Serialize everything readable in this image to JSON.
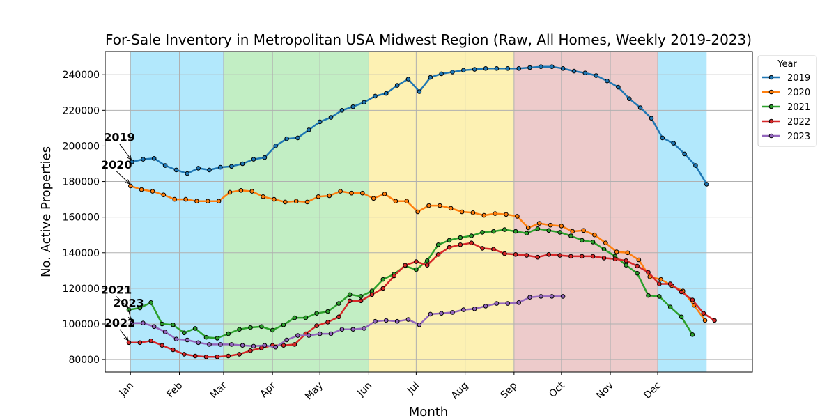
{
  "chart_data": {
    "type": "line",
    "title": "For-Sale Inventory in Metropolitan USA Midwest Region (Raw, All Homes, Weekly 2019-2023)",
    "xlabel": "Month",
    "ylabel": "No. Active Properties",
    "x_unit": "day of year",
    "xlim": [
      -15,
      395
    ],
    "ylim": [
      73000,
      253000
    ],
    "y_ticks": [
      80000,
      100000,
      120000,
      140000,
      160000,
      180000,
      200000,
      220000,
      240000
    ],
    "month_ticks": [
      {
        "label": "Jan",
        "day": 1
      },
      {
        "label": "Feb",
        "day": 32
      },
      {
        "label": "Mar",
        "day": 60
      },
      {
        "label": "Apr",
        "day": 91
      },
      {
        "label": "May",
        "day": 121
      },
      {
        "label": "Jun",
        "day": 152
      },
      {
        "label": "Jul",
        "day": 182
      },
      {
        "label": "Aug",
        "day": 213
      },
      {
        "label": "Sep",
        "day": 244
      },
      {
        "label": "Oct",
        "day": 274
      },
      {
        "label": "Nov",
        "day": 305
      },
      {
        "label": "Dec",
        "day": 335
      }
    ],
    "grid": true,
    "legend": {
      "title": "Year",
      "position": "outside-right-top"
    },
    "season_bands": [
      {
        "name": "winter",
        "from": 1,
        "to": 60,
        "color": "#b2e8fc"
      },
      {
        "name": "spring",
        "from": 60,
        "to": 152,
        "color": "#c2eec4"
      },
      {
        "name": "summer",
        "from": 152,
        "to": 244,
        "color": "#fdf1b3"
      },
      {
        "name": "autumn",
        "from": 244,
        "to": 335,
        "color": "#edcbcb"
      },
      {
        "name": "winter",
        "from": 335,
        "to": 366,
        "color": "#b2e8fc"
      }
    ],
    "series": [
      {
        "name": "2019",
        "color": "#1f77b4",
        "x_start": 2,
        "values": [
          191000,
          192500,
          193000,
          189000,
          186500,
          184500,
          187500,
          186500,
          188000,
          188500,
          190000,
          192500,
          193500,
          200000,
          204000,
          204500,
          209000,
          213500,
          216000,
          220000,
          222000,
          224500,
          228000,
          229500,
          234000,
          237500,
          230500,
          238500,
          240500,
          241500,
          242500,
          243000,
          243500,
          243500,
          243500,
          243500,
          244000,
          244500,
          244500,
          243500,
          242000,
          241000,
          239500,
          236500,
          233000,
          226500,
          221500,
          215500,
          204500,
          201500,
          195500,
          189000,
          178500
        ]
      },
      {
        "name": "2020",
        "color": "#ff7f0e",
        "x_start": 1,
        "values": [
          177500,
          175500,
          174500,
          172500,
          170000,
          170000,
          169000,
          169000,
          169000,
          174000,
          175000,
          174500,
          171500,
          170000,
          168500,
          169000,
          168500,
          171500,
          172000,
          174500,
          173500,
          173500,
          170500,
          173000,
          169000,
          169000,
          163000,
          166500,
          166500,
          165000,
          163000,
          162500,
          161000,
          162000,
          161500,
          160500,
          154000,
          156500,
          155500,
          155000,
          152000,
          152500,
          150000,
          145500,
          140500,
          140000,
          136000,
          126500,
          125000,
          121500,
          118500,
          110500,
          102000
        ]
      },
      {
        "name": "2021",
        "color": "#2ca02c",
        "x_start": 0,
        "values": [
          108000,
          109000,
          112000,
          100000,
          99500,
          95000,
          97500,
          92500,
          92000,
          94500,
          97000,
          98000,
          98500,
          96500,
          99500,
          103500,
          103500,
          106000,
          107000,
          111500,
          116500,
          115500,
          118500,
          125000,
          128000,
          132500,
          130500,
          135500,
          144500,
          147000,
          148500,
          149500,
          151500,
          152000,
          153000,
          152000,
          151000,
          153500,
          152500,
          151500,
          149500,
          147000,
          146000,
          142000,
          138000,
          133000,
          128500,
          116000,
          115500,
          109500,
          104000,
          94000
        ]
      },
      {
        "name": "2022",
        "color": "#d62728",
        "x_start": 0,
        "values": [
          89500,
          89500,
          90500,
          88000,
          85500,
          83000,
          82000,
          81500,
          81500,
          82000,
          83000,
          85000,
          86500,
          88000,
          88000,
          88500,
          94500,
          99000,
          101000,
          104000,
          113000,
          113000,
          116500,
          120000,
          127000,
          133000,
          135000,
          133000,
          139000,
          143000,
          144500,
          145500,
          142500,
          142000,
          139500,
          139000,
          138500,
          137500,
          139000,
          138500,
          138000,
          138000,
          138000,
          137000,
          136500,
          135500,
          132500,
          129000,
          122500,
          122500,
          118000,
          113500,
          106000,
          102000
        ]
      },
      {
        "name": "2023",
        "color": "#9467bd",
        "x_start": 2,
        "values": [
          100500,
          100500,
          98500,
          95500,
          91500,
          91000,
          89500,
          88500,
          88500,
          88500,
          88000,
          87500,
          88000,
          87000,
          91000,
          93500,
          93500,
          94500,
          94500,
          97000,
          97000,
          97500,
          101500,
          102000,
          101500,
          102500,
          99500,
          105500,
          106000,
          106500,
          108000,
          108500,
          110000,
          111500,
          111500,
          112000,
          115000,
          115500,
          115500,
          115500
        ]
      }
    ],
    "annotations": [
      {
        "text": "2019",
        "series": "2019"
      },
      {
        "text": "2020",
        "series": "2020"
      },
      {
        "text": "2021",
        "series": "2021"
      },
      {
        "text": "2023",
        "series": "2023"
      },
      {
        "text": "2022",
        "series": "2022"
      }
    ]
  }
}
